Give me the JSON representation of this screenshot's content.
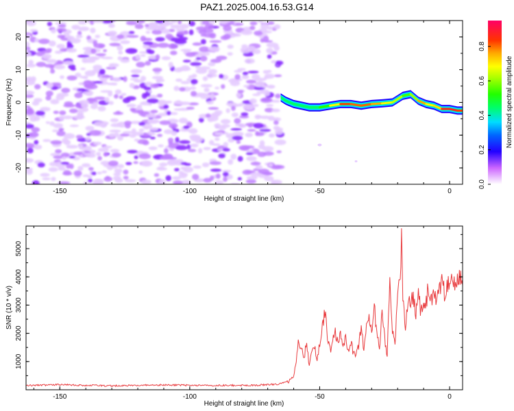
{
  "title": "PAZ1.2025.004.16.53.G14",
  "chart_data": [
    {
      "type": "heatmap",
      "xlabel": "Height of straight line (km)",
      "ylabel": "Frequency (Hz)",
      "xlim": [
        -163,
        5
      ],
      "ylim": [
        -25,
        25
      ],
      "xticks": [
        -150,
        -100,
        -50,
        0
      ],
      "yticks": [
        -20,
        -10,
        0,
        10,
        20
      ],
      "noise_region_x": [
        -163,
        -65
      ],
      "signal_track": {
        "x": [
          -65,
          -63,
          -60,
          -57,
          -54,
          -50,
          -46,
          -42,
          -38,
          -34,
          -30,
          -26,
          -22,
          -18,
          -15,
          -12,
          -9,
          -6,
          -3,
          0,
          3,
          5
        ],
        "freq": [
          1.5,
          0.5,
          -0.5,
          -1.0,
          -1.5,
          -1.5,
          -1.0,
          -0.5,
          -0.5,
          -1.0,
          -0.5,
          -0.3,
          0.0,
          2.0,
          2.5,
          0.5,
          -0.5,
          -1.0,
          -2.0,
          -2.0,
          -2.5,
          -2.5
        ],
        "amplitude": [
          0.35,
          0.4,
          0.45,
          0.45,
          0.45,
          0.5,
          0.6,
          0.85,
          0.9,
          0.8,
          0.9,
          0.7,
          0.75,
          0.6,
          0.55,
          0.75,
          0.85,
          0.6,
          0.9,
          0.95,
          0.9,
          0.85
        ]
      },
      "colorbar": {
        "label": "Normalized spectral amplitude",
        "range": [
          0.0,
          0.95
        ],
        "ticks": [
          "0.0",
          "0.2",
          "0.4",
          "0.6",
          "0.8"
        ]
      }
    },
    {
      "type": "line",
      "xlabel": "Height of straight line (km)",
      "ylabel": "SNR (10 * v/v)",
      "xlim": [
        -163,
        5
      ],
      "ylim": [
        0,
        5800
      ],
      "xticks": [
        -150,
        -100,
        -50,
        0
      ],
      "yticks": [
        1000,
        2000,
        3000,
        4000,
        5000
      ],
      "color": "#e8383b",
      "series": [
        {
          "x": [
            -163,
            -150,
            -130,
            -110,
            -90,
            -75,
            -66,
            -62,
            -60,
            -59,
            -58,
            -57,
            -56,
            -55,
            -54,
            -53,
            -52,
            -51,
            -50,
            -49,
            -48,
            -47,
            -46,
            -45,
            -44,
            -43,
            -42,
            -41,
            -40,
            -39,
            -38,
            -37,
            -36,
            -35,
            -34,
            -33,
            -32,
            -31,
            -30,
            -29,
            -28,
            -27,
            -26,
            -25,
            -24,
            -23,
            -22,
            -21,
            -20,
            -19,
            -18.5,
            -18,
            -17,
            -16,
            -15,
            -14,
            -13,
            -12,
            -11,
            -10,
            -9,
            -8,
            -7,
            -6,
            -5,
            -4,
            -3,
            -2,
            -1,
            0,
            1,
            2,
            3,
            4,
            5
          ],
          "y": [
            150,
            180,
            140,
            170,
            150,
            160,
            200,
            300,
            500,
            1000,
            1800,
            1400,
            1200,
            1600,
            900,
            1300,
            1500,
            1100,
            1700,
            2200,
            2800,
            1900,
            1400,
            1700,
            2100,
            1600,
            1900,
            1500,
            1800,
            1400,
            1700,
            1300,
            1200,
            1600,
            2100,
            1500,
            2300,
            2600,
            2100,
            3000,
            2000,
            1500,
            2800,
            1800,
            1200,
            3900,
            2200,
            1600,
            3600,
            4000,
            5700,
            3100,
            2300,
            3100,
            2900,
            3400,
            2600,
            3300,
            2700,
            3000,
            3200,
            3600,
            3100,
            3500,
            3300,
            3700,
            3900,
            3500,
            3600,
            4000,
            4100,
            3700,
            3800,
            3900,
            3700
          ]
        }
      ]
    }
  ]
}
